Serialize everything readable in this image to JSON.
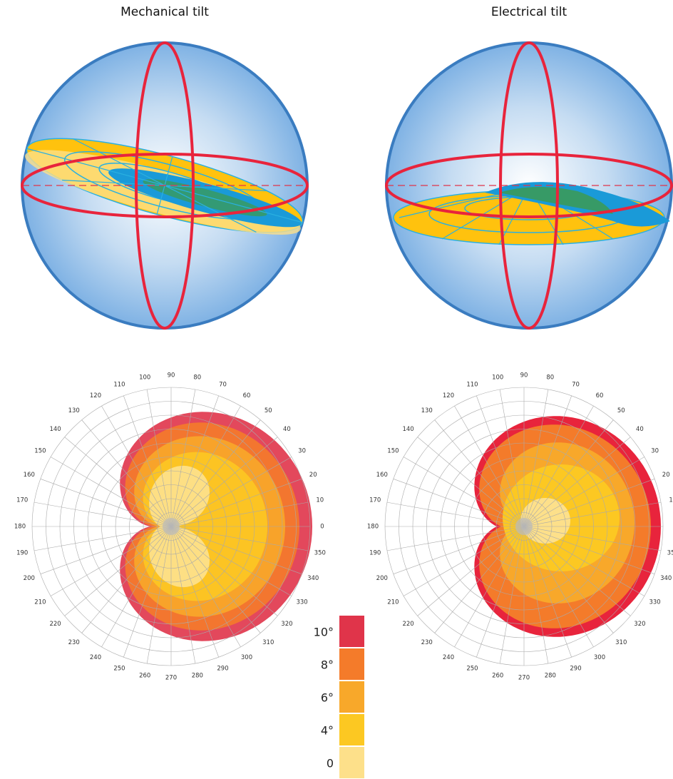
{
  "titles": {
    "mechanical": "Mechanical tilt",
    "electrical": "Electrical tilt"
  },
  "polar_angles": [
    0,
    10,
    20,
    30,
    40,
    50,
    60,
    70,
    80,
    90,
    100,
    110,
    120,
    130,
    140,
    150,
    160,
    170,
    180,
    190,
    200,
    210,
    220,
    230,
    240,
    250,
    260,
    270,
    280,
    290,
    300,
    310,
    320,
    330,
    340,
    350
  ],
  "legend": [
    {
      "label": "10°",
      "color": "#e0344a"
    },
    {
      "label": "8°",
      "color": "#f47b2a"
    },
    {
      "label": "6°",
      "color": "#f8a82a"
    },
    {
      "label": "4°",
      "color": "#fcc822"
    },
    {
      "label": "0",
      "color": "#fde08a"
    }
  ]
}
